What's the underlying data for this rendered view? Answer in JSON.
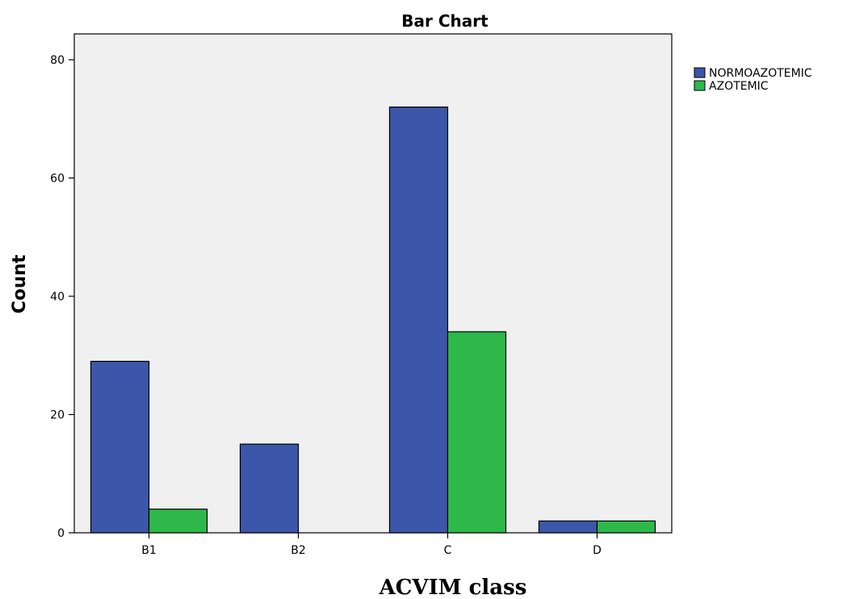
{
  "chart_data": {
    "type": "bar",
    "title": "Bar Chart",
    "xlabel": "ACVIM class",
    "ylabel": "Count",
    "categories": [
      "B1",
      "B2",
      "C",
      "D"
    ],
    "series": [
      {
        "name": "NORMOAZOTEMIC",
        "values": [
          29,
          15,
          72,
          2
        ],
        "color": "#3c57a9"
      },
      {
        "name": "AZOTEMIC",
        "values": [
          4,
          0,
          34,
          2
        ],
        "color": "#2eb84a"
      }
    ],
    "ylim": [
      0,
      80
    ],
    "yticks": [
      0,
      20,
      40,
      60,
      80
    ],
    "plot_background": "#f0f0f0",
    "legend_position": "top-right",
    "grid": false
  }
}
